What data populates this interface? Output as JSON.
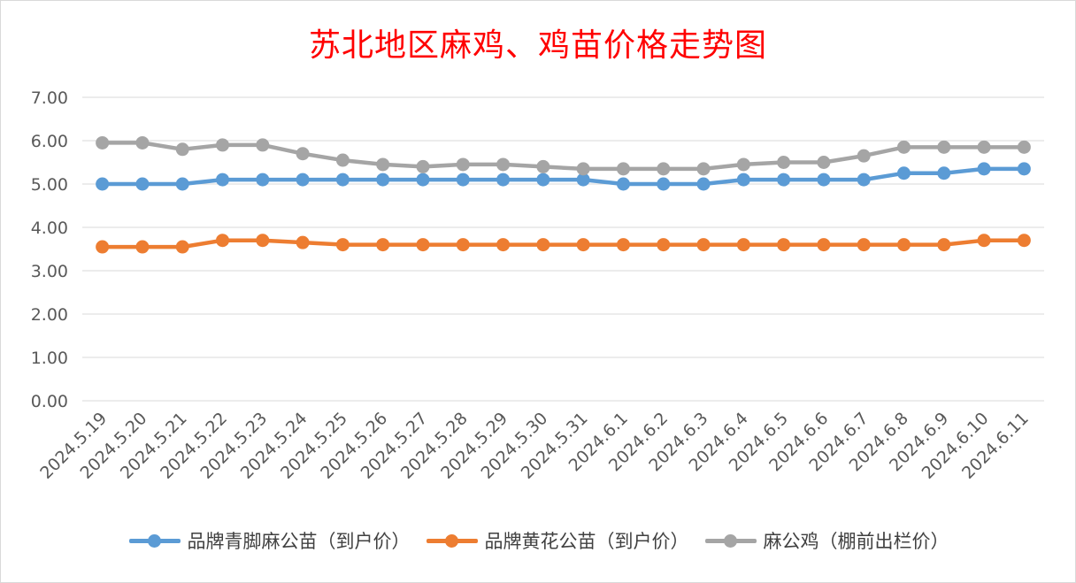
{
  "chart_data": {
    "type": "line",
    "title": "苏北地区麻鸡、鸡苗价格走势图",
    "categories": [
      "2024.5.19",
      "2024.5.20",
      "2024.5.21",
      "2024.5.22",
      "2024.5.23",
      "2024.5.24",
      "2024.5.25",
      "2024.5.26",
      "2024.5.27",
      "2024.5.28",
      "2024.5.29",
      "2024.5.30",
      "2024.5.31",
      "2024.6.1",
      "2024.6.2",
      "2024.6.3",
      "2024.6.4",
      "2024.6.5",
      "2024.6.6",
      "2024.6.7",
      "2024.6.8",
      "2024.6.9",
      "2024.6.10",
      "2024.6.11"
    ],
    "yticks": [
      "0.00",
      "1.00",
      "2.00",
      "3.00",
      "4.00",
      "5.00",
      "6.00",
      "7.00"
    ],
    "ylim": [
      0,
      7
    ],
    "grid": true,
    "legend_position": "bottom",
    "series": [
      {
        "name": "品牌青脚麻公苗（到户价）",
        "color": "#5b9bd5",
        "values": [
          5.0,
          5.0,
          5.0,
          5.1,
          5.1,
          5.1,
          5.1,
          5.1,
          5.1,
          5.1,
          5.1,
          5.1,
          5.1,
          5.0,
          5.0,
          5.0,
          5.1,
          5.1,
          5.1,
          5.1,
          5.25,
          5.25,
          5.35,
          5.35
        ]
      },
      {
        "name": "品牌黄花公苗（到户价）",
        "color": "#ed7d31",
        "values": [
          3.55,
          3.55,
          3.55,
          3.7,
          3.7,
          3.65,
          3.6,
          3.6,
          3.6,
          3.6,
          3.6,
          3.6,
          3.6,
          3.6,
          3.6,
          3.6,
          3.6,
          3.6,
          3.6,
          3.6,
          3.6,
          3.6,
          3.7,
          3.7
        ]
      },
      {
        "name": "麻公鸡（棚前出栏价）",
        "color": "#a5a5a5",
        "values": [
          5.95,
          5.95,
          5.8,
          5.9,
          5.9,
          5.7,
          5.55,
          5.45,
          5.4,
          5.45,
          5.45,
          5.4,
          5.35,
          5.35,
          5.35,
          5.35,
          5.45,
          5.5,
          5.5,
          5.65,
          5.85,
          5.85,
          5.85,
          5.85
        ]
      }
    ]
  }
}
